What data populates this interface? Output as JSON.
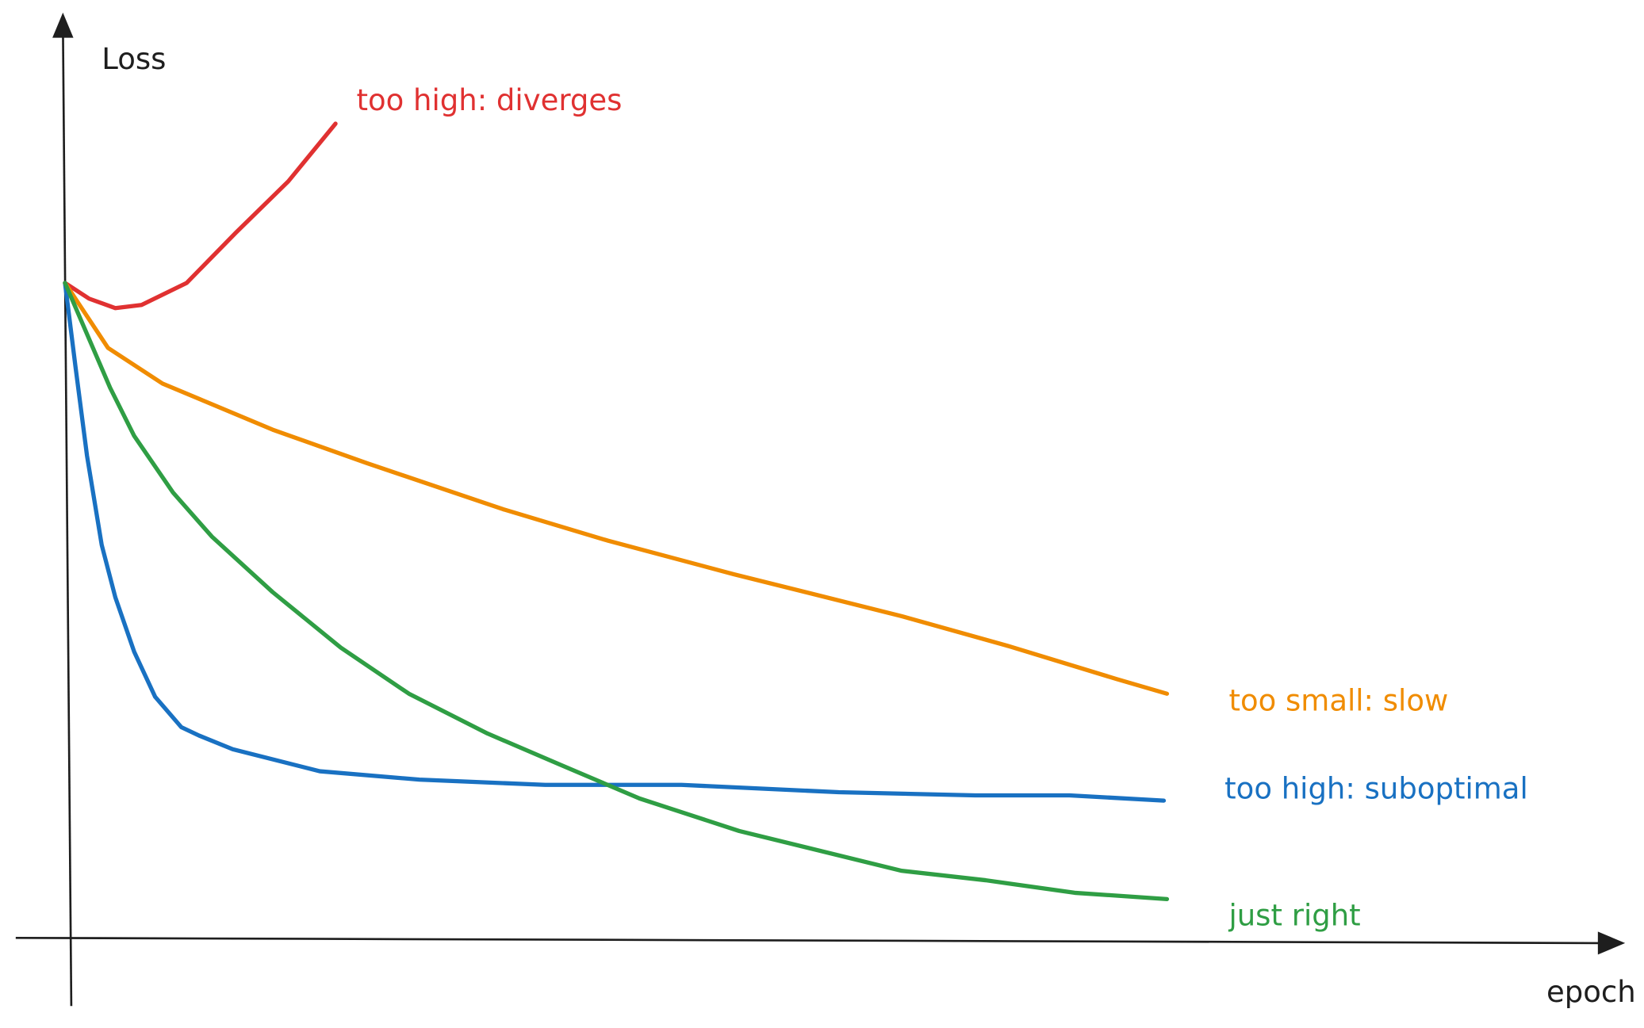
{
  "chart_data": {
    "type": "line",
    "x_label": "epoch",
    "y_label": "Loss",
    "xlim": [
      0,
      149
    ],
    "ylim": [
      0,
      88
    ],
    "series": [
      {
        "name": "too high: diverges",
        "color": "#e03131",
        "x": [
          0,
          2.3,
          4.8,
          7.3,
          11.6,
          16.3,
          21.3,
          25.8
        ],
        "values": [
          62.5,
          61,
          60.1,
          60.4,
          62.5,
          67.3,
          72.2,
          77.7
        ]
      },
      {
        "name": "too small: slow",
        "color": "#f08c00",
        "x": [
          0,
          4.1,
          9.3,
          19.8,
          28.8,
          41.8,
          51.8,
          63.8,
          79.8,
          89.8,
          100.3,
          105.1
        ],
        "values": [
          62.5,
          56.3,
          52.9,
          48.5,
          45.3,
          40.9,
          37.9,
          34.7,
          30.7,
          27.9,
          24.7,
          23.3
        ]
      },
      {
        "name": "too high: suboptimal",
        "color": "#1971c2",
        "x": [
          0,
          1,
          2.1,
          3.5,
          4.8,
          6.6,
          8.6,
          11.1,
          12.8,
          16,
          24.3,
          33.8,
          45.8,
          58.8,
          73.8,
          86.8,
          95.8,
          104.8
        ],
        "values": [
          62.5,
          54.5,
          46,
          37.5,
          32.5,
          27.3,
          23,
          20.1,
          19.3,
          18,
          15.9,
          15.1,
          14.6,
          14.6,
          13.9,
          13.6,
          13.6,
          13.1
        ]
      },
      {
        "name": "just right",
        "color": "#2f9e44",
        "x": [
          0,
          4.3,
          6.6,
          10.3,
          14,
          19.8,
          26.3,
          32.8,
          40.3,
          47.3,
          54.8,
          64.3,
          79.8,
          87.8,
          96.3,
          105.1
        ],
        "values": [
          62.5,
          52.5,
          47.9,
          42.5,
          38.3,
          33,
          27.7,
          23.3,
          19.5,
          16.5,
          13.3,
          10.2,
          6.4,
          5.5,
          4.3,
          3.7
        ]
      }
    ]
  }
}
